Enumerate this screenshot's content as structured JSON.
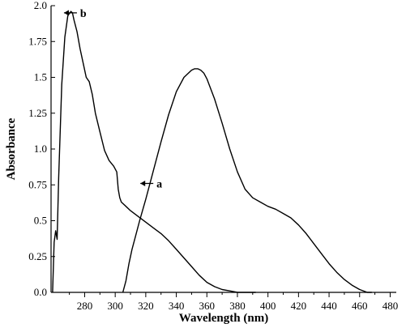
{
  "chart_data": {
    "type": "line",
    "title": "",
    "xlabel": "Wavelength (nm)",
    "ylabel": "Absorbance",
    "xlim": [
      258,
      484
    ],
    "ylim": [
      0,
      2.0
    ],
    "x_ticks": [
      280,
      300,
      320,
      340,
      360,
      380,
      400,
      420,
      440,
      460,
      480
    ],
    "x_tick_labels": [
      "280",
      "300",
      "320",
      "340",
      "360",
      "380",
      "400",
      "420",
      "440",
      "460",
      "480"
    ],
    "y_ticks": [
      0,
      0.25,
      0.5,
      0.75,
      1.0,
      1.25,
      1.5,
      1.75,
      2.0
    ],
    "y_tick_labels": [
      "0.0",
      "0.25",
      "0.5",
      "0.75",
      "1.0",
      "1.25",
      "1.5",
      "1.75",
      "2.0"
    ],
    "grid": false,
    "legend": "none",
    "series": [
      {
        "name": "b",
        "x": [
          259,
          260,
          261,
          262,
          263,
          265,
          267,
          269,
          271,
          272,
          273,
          275,
          277,
          279,
          281,
          283,
          285,
          287,
          290,
          293,
          296,
          299,
          301,
          302,
          303,
          304,
          305,
          307,
          310,
          315,
          320,
          325,
          330,
          335,
          340,
          345,
          350,
          355,
          360,
          365,
          370,
          375,
          380,
          385,
          390,
          392
        ],
        "values": [
          0.0,
          0.35,
          0.43,
          0.37,
          0.8,
          1.45,
          1.78,
          1.93,
          1.96,
          1.95,
          1.9,
          1.82,
          1.7,
          1.6,
          1.5,
          1.47,
          1.38,
          1.25,
          1.12,
          0.99,
          0.92,
          0.88,
          0.84,
          0.72,
          0.66,
          0.63,
          0.62,
          0.6,
          0.57,
          0.53,
          0.49,
          0.45,
          0.41,
          0.36,
          0.3,
          0.24,
          0.18,
          0.12,
          0.07,
          0.04,
          0.02,
          0.01,
          0.0,
          0.0,
          0.0,
          0.0
        ]
      },
      {
        "name": "a",
        "x": [
          305,
          307,
          309,
          310,
          311,
          313,
          316,
          320,
          325,
          330,
          335,
          340,
          345,
          350,
          352,
          354,
          356,
          358,
          360,
          365,
          370,
          375,
          380,
          385,
          390,
          395,
          400,
          405,
          410,
          415,
          420,
          425,
          430,
          435,
          440,
          445,
          450,
          455,
          460,
          465,
          468
        ],
        "values": [
          0.0,
          0.08,
          0.2,
          0.25,
          0.3,
          0.38,
          0.5,
          0.65,
          0.85,
          1.05,
          1.24,
          1.4,
          1.5,
          1.55,
          1.56,
          1.56,
          1.55,
          1.53,
          1.49,
          1.35,
          1.18,
          1.0,
          0.84,
          0.72,
          0.66,
          0.63,
          0.6,
          0.58,
          0.55,
          0.52,
          0.47,
          0.41,
          0.34,
          0.27,
          0.2,
          0.14,
          0.09,
          0.05,
          0.02,
          0.0,
          0.0
        ]
      }
    ],
    "annotations": [
      {
        "text": "b",
        "x": 276,
        "y": 1.95
      },
      {
        "text": "a",
        "x": 326,
        "y": 0.76
      }
    ]
  }
}
